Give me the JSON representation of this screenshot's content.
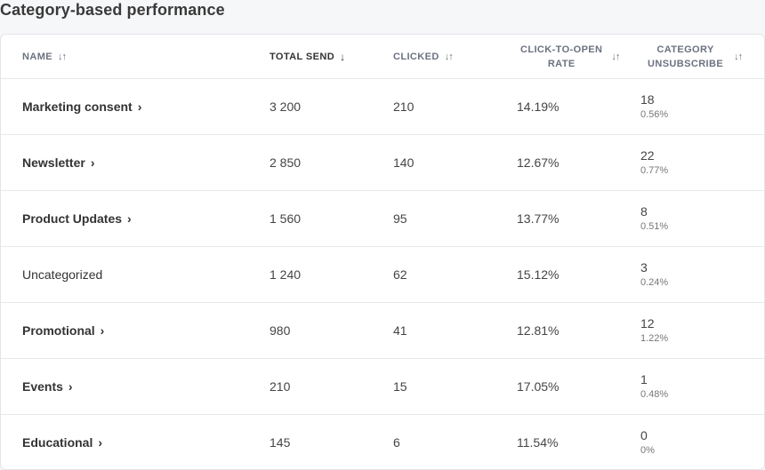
{
  "page": {
    "title": "Category-based performance"
  },
  "table": {
    "columns": {
      "name": "NAME",
      "total_send": "TOTAL SEND",
      "clicked": "CLICKED",
      "cto_line1": "CLICK-TO-OPEN",
      "cto_line2": "RATE",
      "unsub_line1": "CATEGORY",
      "unsub_line2": "UNSUBSCRIBE"
    },
    "sort_icons": {
      "inactive": "↓↑",
      "active": "↓"
    },
    "rows": [
      {
        "name": "Marketing consent",
        "link": true,
        "total_send": "3 200",
        "clicked": "210",
        "cto": "14.19%",
        "unsub_count": "18",
        "unsub_pct": "0.56%"
      },
      {
        "name": "Newsletter",
        "link": true,
        "total_send": "2 850",
        "clicked": "140",
        "cto": "12.67%",
        "unsub_count": "22",
        "unsub_pct": "0.77%"
      },
      {
        "name": "Product Updates",
        "link": true,
        "total_send": "1 560",
        "clicked": "95",
        "cto": "13.77%",
        "unsub_count": "8",
        "unsub_pct": "0.51%"
      },
      {
        "name": "Uncategorized",
        "link": false,
        "total_send": "1 240",
        "clicked": "62",
        "cto": "15.12%",
        "unsub_count": "3",
        "unsub_pct": "0.24%"
      },
      {
        "name": "Promotional",
        "link": true,
        "total_send": "980",
        "clicked": "41",
        "cto": "12.81%",
        "unsub_count": "12",
        "unsub_pct": "1.22%"
      },
      {
        "name": "Events",
        "link": true,
        "total_send": "210",
        "clicked": "15",
        "cto": "17.05%",
        "unsub_count": "1",
        "unsub_pct": "0.48%"
      },
      {
        "name": "Educational",
        "link": true,
        "total_send": "145",
        "clicked": "6",
        "cto": "11.54%",
        "unsub_count": "0",
        "unsub_pct": "0%"
      }
    ]
  }
}
